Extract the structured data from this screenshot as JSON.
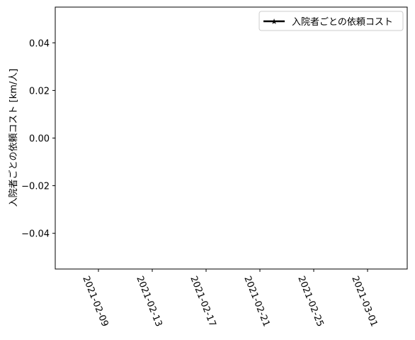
{
  "chart_data": {
    "type": "line",
    "title": "",
    "xlabel": "",
    "ylabel": "入院者ごとの依頼コスト [km/人]",
    "x_tick_labels": [
      "2021-02-09",
      "2021-02-13",
      "2021-02-17",
      "2021-02-21",
      "2021-02-25",
      "2021-03-01"
    ],
    "y_tick_labels": [
      "0.04",
      "0.02",
      "0.00",
      "−0.02",
      "−0.04"
    ],
    "y_tick_values": [
      0.04,
      0.02,
      0.0,
      -0.02,
      -0.04
    ],
    "ylim": [
      -0.055,
      0.055
    ],
    "grid": false,
    "legend_location": "upper right",
    "series": [
      {
        "name": "入院者ごとの依頼コスト",
        "x": [],
        "y": [],
        "color": "#000000",
        "marker": "star"
      }
    ]
  }
}
